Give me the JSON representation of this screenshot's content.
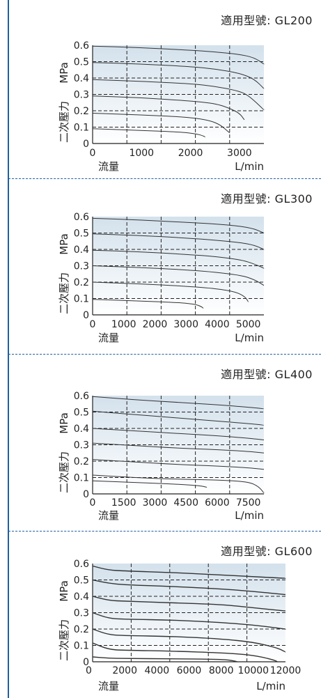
{
  "colors": {
    "frame": "#1f5f9e",
    "grid": "#222222",
    "curve": "#333333",
    "bg_top": "#d3e1ec",
    "bg_bottom": "#ffffff"
  },
  "chart_data": [
    {
      "type": "line",
      "title": "適用型號: GL200",
      "xlabel": "流量",
      "xunit": "L/min",
      "ylabel": "二次壓力",
      "yunit": "MPa",
      "xlim": [
        0,
        3500
      ],
      "ylim": [
        0,
        0.6
      ],
      "xticks": [
        0,
        1000,
        2000,
        3000
      ],
      "yticks": [
        0,
        0.1,
        0.2,
        0.3,
        0.4,
        0.5,
        0.6
      ],
      "grid": true,
      "series": [
        {
          "x": [
            0,
            1000,
            2000,
            2500,
            3000,
            3300,
            3500
          ],
          "y": [
            0.595,
            0.585,
            0.57,
            0.56,
            0.545,
            0.525,
            0.485
          ]
        },
        {
          "x": [
            0,
            1000,
            2000,
            2500,
            3000,
            3300,
            3500
          ],
          "y": [
            0.495,
            0.485,
            0.47,
            0.455,
            0.43,
            0.395,
            0.335
          ]
        },
        {
          "x": [
            0,
            1000,
            2000,
            2500,
            3000,
            3200,
            3500
          ],
          "y": [
            0.39,
            0.38,
            0.365,
            0.35,
            0.32,
            0.29,
            0.205
          ]
        },
        {
          "x": [
            0,
            1000,
            2000,
            2500,
            2800,
            3000,
            3100
          ],
          "y": [
            0.29,
            0.28,
            0.26,
            0.245,
            0.215,
            0.185,
            0.145
          ]
        },
        {
          "x": [
            0,
            1000,
            2000,
            2400,
            2600,
            2700,
            2800
          ],
          "y": [
            0.185,
            0.175,
            0.16,
            0.14,
            0.115,
            0.09,
            0.065
          ]
        },
        {
          "x": [
            0,
            1000,
            1800,
            2100,
            2250,
            2300
          ],
          "y": [
            0.09,
            0.08,
            0.07,
            0.06,
            0.048,
            0.04
          ]
        }
      ]
    },
    {
      "type": "line",
      "title": "適用型號: GL300",
      "xlabel": "流量",
      "xunit": "L/min",
      "ylabel": "二次壓力",
      "yunit": "MPa",
      "xlim": [
        0,
        5500
      ],
      "ylim": [
        0,
        0.6
      ],
      "xticks": [
        0,
        1000,
        2000,
        3000,
        4000,
        5000
      ],
      "yticks": [
        0,
        0.1,
        0.2,
        0.3,
        0.4,
        0.5,
        0.6
      ],
      "grid": true,
      "series": [
        {
          "x": [
            0,
            1500,
            3000,
            4000,
            4800,
            5200,
            5500
          ],
          "y": [
            0.59,
            0.58,
            0.565,
            0.555,
            0.54,
            0.525,
            0.5
          ]
        },
        {
          "x": [
            0,
            1500,
            3000,
            4000,
            4800,
            5200,
            5500
          ],
          "y": [
            0.495,
            0.485,
            0.47,
            0.455,
            0.44,
            0.425,
            0.4
          ]
        },
        {
          "x": [
            0,
            1500,
            3000,
            4000,
            4800,
            5200,
            5500
          ],
          "y": [
            0.395,
            0.385,
            0.37,
            0.355,
            0.335,
            0.31,
            0.285
          ]
        },
        {
          "x": [
            0,
            1500,
            3000,
            4000,
            4800,
            5200,
            5500
          ],
          "y": [
            0.3,
            0.29,
            0.275,
            0.26,
            0.24,
            0.215,
            0.18
          ]
        },
        {
          "x": [
            0,
            1500,
            3000,
            4000,
            4600,
            4900,
            5000
          ],
          "y": [
            0.2,
            0.19,
            0.175,
            0.16,
            0.14,
            0.11,
            0.08
          ]
        },
        {
          "x": [
            0,
            1500,
            2800,
            3300,
            3500,
            3550
          ],
          "y": [
            0.095,
            0.085,
            0.075,
            0.065,
            0.05,
            0.04
          ]
        }
      ]
    },
    {
      "type": "line",
      "title": "適用型號: GL400",
      "xlabel": "流量",
      "xunit": "L/min",
      "ylabel": "二次壓力",
      "yunit": "MPa",
      "xlim": [
        0,
        8250
      ],
      "ylim": [
        0,
        0.6
      ],
      "xticks": [
        0,
        1500,
        3000,
        4500,
        6000,
        7500
      ],
      "yticks": [
        0,
        0.1,
        0.2,
        0.3,
        0.4,
        0.5,
        0.6
      ],
      "grid": true,
      "series": [
        {
          "x": [
            0,
            2000,
            4000,
            6000,
            7500,
            8250
          ],
          "y": [
            0.595,
            0.575,
            0.56,
            0.545,
            0.53,
            0.52
          ]
        },
        {
          "x": [
            0,
            2000,
            4000,
            6000,
            7500,
            8250
          ],
          "y": [
            0.505,
            0.485,
            0.465,
            0.445,
            0.43,
            0.42
          ]
        },
        {
          "x": [
            0,
            2000,
            4000,
            6000,
            7500,
            8250
          ],
          "y": [
            0.4,
            0.385,
            0.37,
            0.355,
            0.34,
            0.33
          ]
        },
        {
          "x": [
            0,
            2000,
            4000,
            6000,
            7500,
            8250
          ],
          "y": [
            0.31,
            0.295,
            0.28,
            0.27,
            0.26,
            0.25
          ]
        },
        {
          "x": [
            0,
            2000,
            4000,
            6000,
            7500,
            8250
          ],
          "y": [
            0.21,
            0.195,
            0.18,
            0.17,
            0.16,
            0.15
          ]
        },
        {
          "x": [
            0,
            2000,
            4000,
            6000,
            7500,
            8000,
            8250
          ],
          "y": [
            0.115,
            0.1,
            0.09,
            0.085,
            0.075,
            0.045,
            0.005
          ]
        },
        {
          "x": [
            0,
            2000,
            4000,
            5200,
            5500
          ],
          "y": [
            0.08,
            0.07,
            0.06,
            0.05,
            0.04
          ]
        }
      ]
    },
    {
      "type": "line",
      "title": "適用型號: GL600",
      "xlabel": "流量",
      "xunit": "L/min",
      "ylabel": "二次壓力",
      "yunit": "MPa",
      "xlim": [
        0,
        12000
      ],
      "ylim": [
        0,
        0.6
      ],
      "xticks": [
        0,
        2000,
        4000,
        6000,
        8000,
        10000,
        12000
      ],
      "yticks": [
        0,
        0.1,
        0.2,
        0.3,
        0.4,
        0.5,
        0.6
      ],
      "grid": true,
      "series": [
        {
          "x": [
            0,
            1000,
            2000,
            5000,
            8000,
            10000,
            12000
          ],
          "y": [
            0.585,
            0.56,
            0.555,
            0.545,
            0.53,
            0.52,
            0.51
          ]
        },
        {
          "x": [
            0,
            1000,
            2000,
            5000,
            8000,
            10000,
            12000
          ],
          "y": [
            0.5,
            0.48,
            0.47,
            0.46,
            0.445,
            0.43,
            0.41
          ]
        },
        {
          "x": [
            0,
            1000,
            2000,
            5000,
            8000,
            10000,
            12000
          ],
          "y": [
            0.4,
            0.375,
            0.37,
            0.36,
            0.35,
            0.33,
            0.31
          ]
        },
        {
          "x": [
            0,
            1000,
            2000,
            5000,
            8000,
            10000,
            12000
          ],
          "y": [
            0.3,
            0.265,
            0.26,
            0.255,
            0.24,
            0.225,
            0.2
          ]
        },
        {
          "x": [
            0,
            1000,
            2000,
            5000,
            8000,
            10000,
            11500,
            12000
          ],
          "y": [
            0.2,
            0.165,
            0.16,
            0.155,
            0.14,
            0.12,
            0.085,
            0.06
          ]
        },
        {
          "x": [
            0,
            1000,
            2000,
            5000,
            8000,
            9500,
            10500,
            11300,
            11500
          ],
          "y": [
            0.115,
            0.075,
            0.07,
            0.065,
            0.055,
            0.045,
            0.03,
            0.01,
            0
          ]
        },
        {
          "x": [
            0,
            1000,
            2000,
            5000,
            8000,
            8700,
            9000
          ],
          "y": [
            0.03,
            0.022,
            0.02,
            0.018,
            0.015,
            0.008,
            0
          ]
        }
      ]
    }
  ]
}
